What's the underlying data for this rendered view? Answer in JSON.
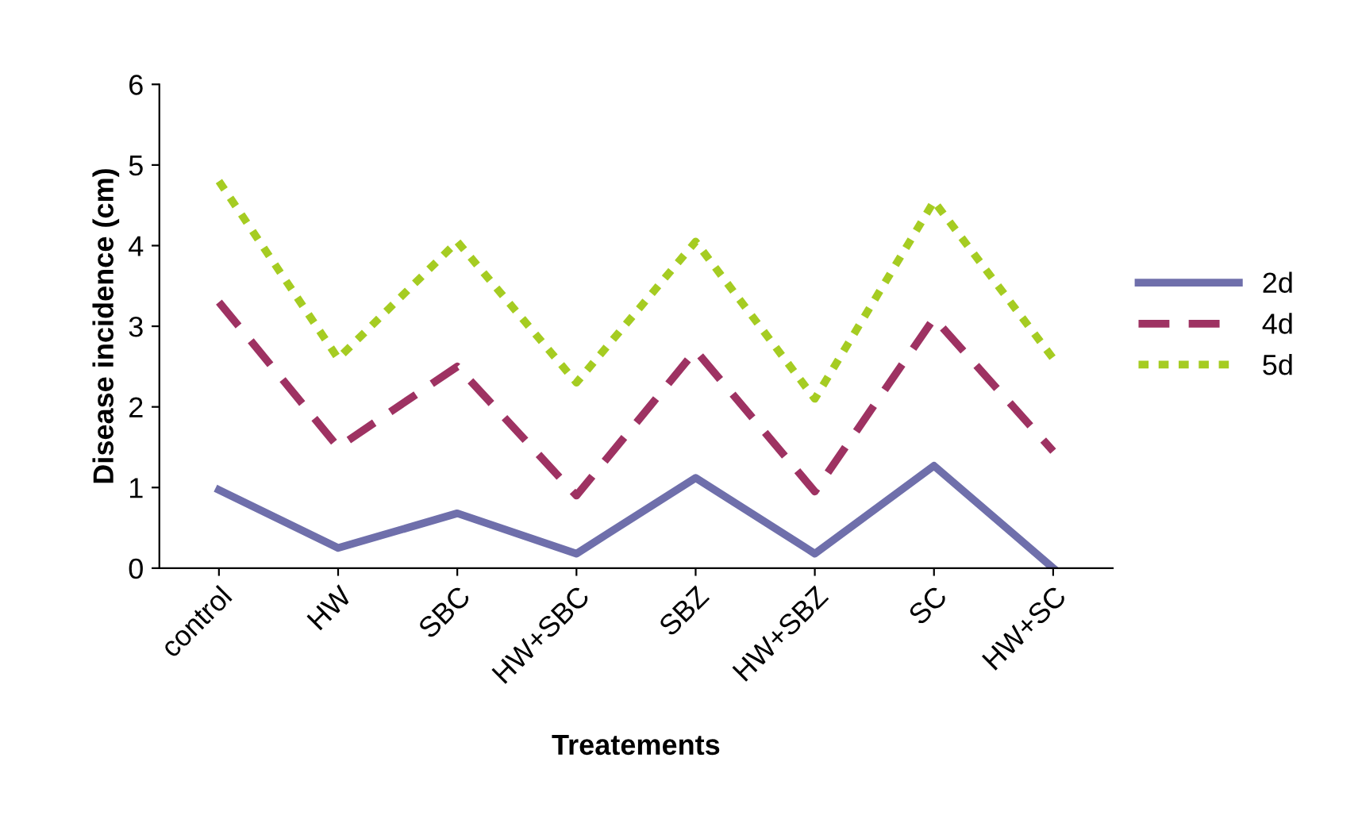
{
  "chart_data": {
    "type": "line",
    "xlabel": "Treatements",
    "ylabel": "Disease incidence (cm)",
    "categories": [
      "control",
      "HW",
      "SBC",
      "HW+SBC",
      "SBZ",
      "HW+SBZ",
      "SC",
      "HW+SC"
    ],
    "series": [
      {
        "name": "2d",
        "color": "#6f6fab",
        "line_style": "solid",
        "values": [
          0.97,
          0.25,
          0.68,
          0.18,
          1.12,
          0.18,
          1.27,
          0
        ]
      },
      {
        "name": "4d",
        "color": "#9e3262",
        "line_style": "dashed",
        "values": [
          3.3,
          1.5,
          2.5,
          0.9,
          2.7,
          0.95,
          3.1,
          1.45
        ]
      },
      {
        "name": "5d",
        "color": "#a5cc22",
        "line_style": "dotted",
        "values": [
          4.8,
          2.6,
          4.05,
          2.3,
          4.05,
          2.1,
          4.55,
          2.6
        ]
      }
    ],
    "ylim": [
      0,
      6
    ],
    "yticks": [
      0,
      1,
      2,
      3,
      4,
      5,
      6
    ],
    "grid": false,
    "legend": "right",
    "marker": "none"
  }
}
